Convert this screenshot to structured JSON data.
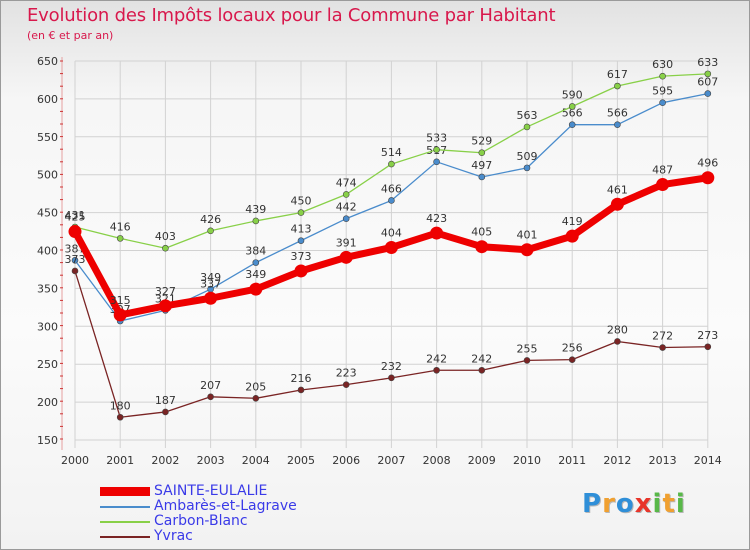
{
  "header": {
    "title": "Evolution des Impôts locaux pour la Commune par Habitant",
    "subtitle": "(en € et par an)"
  },
  "brand": {
    "text": "Proxiti",
    "letters": [
      {
        "char": "P",
        "color": "#2f8fd8"
      },
      {
        "char": "r",
        "color": "#f0a030"
      },
      {
        "char": "o",
        "color": "#2f8fd8"
      },
      {
        "char": "x",
        "color": "#e8352a"
      },
      {
        "char": "i",
        "color": "#58b848"
      },
      {
        "char": "t",
        "color": "#f0a030"
      },
      {
        "char": "i",
        "color": "#58b848"
      }
    ]
  },
  "chart_data": {
    "type": "line",
    "title": "Evolution des Impôts locaux pour la Commune par Habitant",
    "subtitle": "(en € et par an)",
    "x": [
      2000,
      2001,
      2002,
      2003,
      2004,
      2005,
      2006,
      2007,
      2008,
      2009,
      2010,
      2011,
      2012,
      2013,
      2014
    ],
    "xlabel": "",
    "ylabel": "",
    "ylim": [
      150,
      650
    ],
    "yticks": [
      150,
      200,
      250,
      300,
      350,
      400,
      450,
      500,
      550,
      600,
      650
    ],
    "grid": true,
    "legend": "bottom-left",
    "series": [
      {
        "name": "SAINTE-EULALIE",
        "color": "#ee0000",
        "values": [
          425,
          315,
          327,
          337,
          349,
          373,
          391,
          404,
          423,
          405,
          401,
          419,
          461,
          487,
          496
        ]
      },
      {
        "name": "Ambarès-et-Lagrave",
        "color": "#4a8ccc",
        "values": [
          387,
          307,
          321,
          349,
          384,
          413,
          442,
          466,
          517,
          497,
          509,
          566,
          566,
          595,
          607
        ]
      },
      {
        "name": "Carbon-Blanc",
        "color": "#88d048",
        "values": [
          431,
          416,
          403,
          426,
          439,
          450,
          474,
          514,
          533,
          529,
          563,
          590,
          617,
          630,
          633
        ]
      },
      {
        "name": "Yvrac",
        "color": "#7a2424",
        "values": [
          373,
          180,
          187,
          207,
          205,
          216,
          223,
          232,
          242,
          242,
          255,
          256,
          280,
          272,
          273
        ]
      }
    ]
  }
}
